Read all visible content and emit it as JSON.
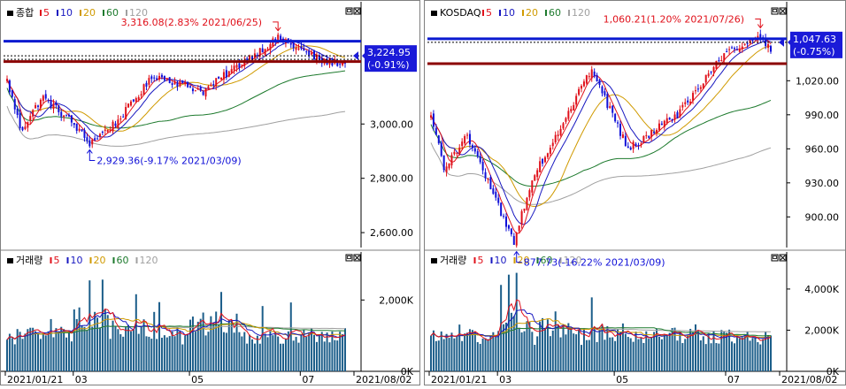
{
  "panels": [
    {
      "id": "kospi",
      "price_title": "종합",
      "volume_title": "거래량",
      "ma_labels": [
        "5",
        "10",
        "20",
        "60",
        "120"
      ],
      "price_axis_ticks": [
        "3,000.00",
        "2,800.00",
        "2,600.00"
      ],
      "volume_axis_ticks": [
        "2,000K",
        "0K"
      ],
      "last_price_label": "3,224.95",
      "last_change_label": "(-0.91%)",
      "high_annotation": "3,316.08(2.83% 2021/06/25)",
      "low_annotation": "2,929.36(-9.17% 2021/03/09)",
      "date_labels": [
        "2021/01/21",
        "03",
        "05",
        "07",
        "2021/08/02"
      ]
    },
    {
      "id": "kosdaq",
      "price_title": "KOSDAQ",
      "volume_title": "거래량",
      "ma_labels": [
        "5",
        "10",
        "20",
        "60",
        "120"
      ],
      "price_axis_ticks": [
        "1,020.00",
        "990.00",
        "960.00",
        "930.00",
        "900.00"
      ],
      "volume_axis_ticks": [
        "4,000K",
        "2,000K",
        "0K"
      ],
      "last_price_label": "1,047.63",
      "last_change_label": "(-0.75%)",
      "high_annotation": "1,060.21(1.20% 2021/07/26)",
      "low_annotation": "877.73(-16.22% 2021/03/09)",
      "date_labels": [
        "2021/01/21",
        "03",
        "05",
        "07",
        "2021/08/02"
      ]
    }
  ],
  "colors": {
    "up": "#e0101a",
    "down": "#1010d8",
    "ma5": "#e0101a",
    "ma10": "#1818c0",
    "ma20": "#d09a00",
    "ma60": "#1d7a2d",
    "ma120": "#a0a0a0",
    "volume_bar": "#1c5e8a",
    "resistance_line": "#0a1ad0",
    "support_line": "#8b0000"
  },
  "chart_data": [
    {
      "type": "candlestick",
      "title": "종합",
      "x_range": [
        "2021/01/21",
        "2021/08/02"
      ],
      "y_range": [
        2545,
        3385
      ],
      "close_key_points": [
        {
          "date": "2021/01/21",
          "close": 3160
        },
        {
          "date": "2021/01/29",
          "close": 2976
        },
        {
          "date": "2021/02/10",
          "close": 3100
        },
        {
          "date": "2021/02/26",
          "close": 3013
        },
        {
          "date": "2021/03/09",
          "close": 2929.36
        },
        {
          "date": "2021/03/25",
          "close": 3010
        },
        {
          "date": "2021/04/15",
          "close": 3180
        },
        {
          "date": "2021/05/13",
          "close": 3120
        },
        {
          "date": "2021/06/07",
          "close": 3240
        },
        {
          "date": "2021/06/25",
          "close": 3316.08
        },
        {
          "date": "2021/07/20",
          "close": 3230
        },
        {
          "date": "2021/08/02",
          "close": 3224.95
        }
      ],
      "horizontal_lines": [
        3305,
        3230
      ],
      "volume_ticks": [
        "2,000K",
        "0K"
      ]
    },
    {
      "type": "candlestick",
      "title": "KOSDAQ",
      "x_range": [
        "2021/01/21",
        "2021/08/02"
      ],
      "y_range": [
        873,
        1074
      ],
      "close_key_points": [
        {
          "date": "2021/01/21",
          "close": 990
        },
        {
          "date": "2021/01/29",
          "close": 940
        },
        {
          "date": "2021/02/10",
          "close": 975
        },
        {
          "date": "2021/03/09",
          "close": 877.73
        },
        {
          "date": "2021/03/20",
          "close": 935
        },
        {
          "date": "2021/04/22",
          "close": 1030
        },
        {
          "date": "2021/05/13",
          "close": 960
        },
        {
          "date": "2021/06/10",
          "close": 990
        },
        {
          "date": "2021/07/05",
          "close": 1040
        },
        {
          "date": "2021/07/26",
          "close": 1060.21
        },
        {
          "date": "2021/08/02",
          "close": 1047.63
        }
      ],
      "horizontal_lines": [
        1057,
        1035
      ],
      "volume_ticks": [
        "4,000K",
        "2,000K",
        "0K"
      ]
    }
  ]
}
